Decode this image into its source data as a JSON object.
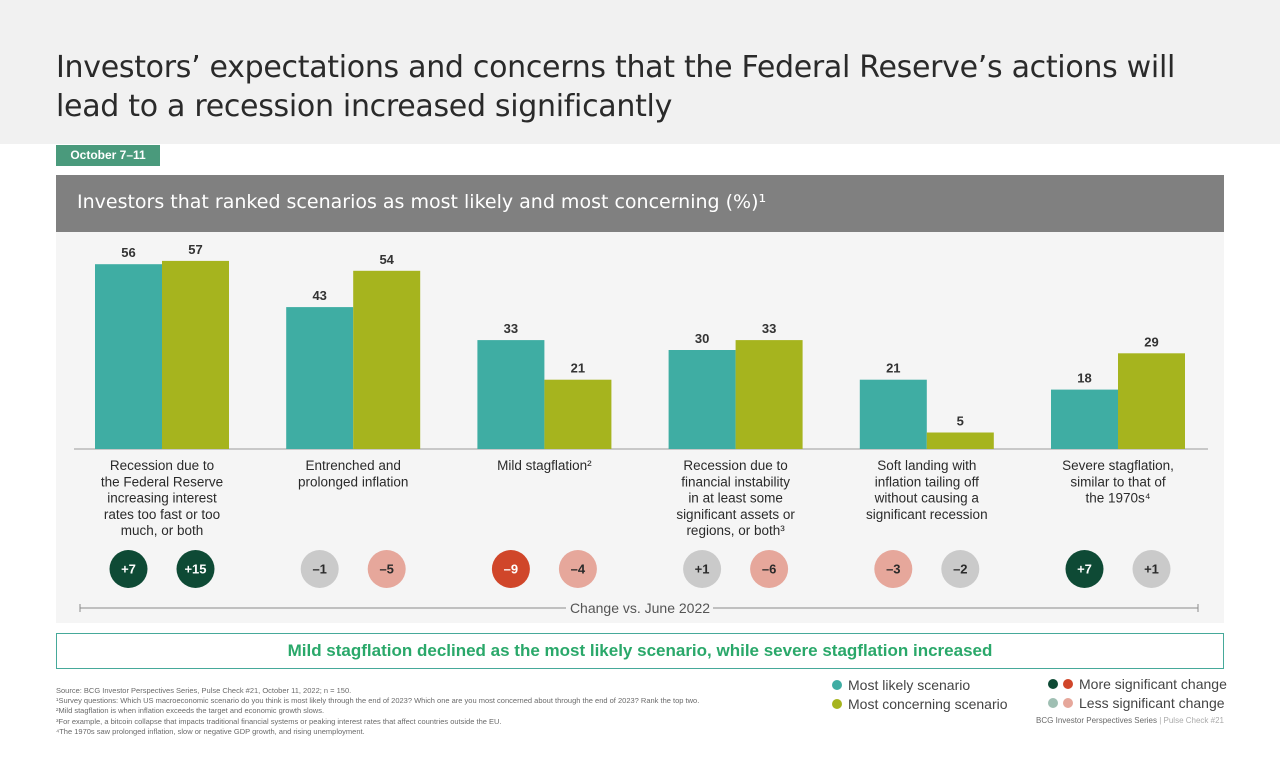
{
  "header": {
    "title": "Investors’ expectations and concerns that the Federal Reserve’s actions will lead to a recession increased significantly",
    "date_tag": "October 7–11"
  },
  "panel": {
    "title": "Investors that ranked scenarios as most likely and most concerning (%)¹"
  },
  "chart_data": {
    "type": "bar",
    "title": "Investors that ranked scenarios as most likely and most concerning (%)¹",
    "categories": [
      [
        "Recession due to",
        "the Federal Reserve",
        "increasing interest",
        "rates too fast or too",
        "much, or both"
      ],
      [
        "Entrenched and",
        "prolonged inflation"
      ],
      [
        "Mild stagflation²"
      ],
      [
        "Recession due to",
        "financial instability",
        "in at least some",
        "significant assets or",
        "regions, or both³"
      ],
      [
        "Soft landing with",
        "inflation tailing off",
        "without causing a",
        "significant recession"
      ],
      [
        "Severe stagflation,",
        "similar to that of",
        "the 1970s⁴"
      ]
    ],
    "series": [
      {
        "name": "Most likely scenario",
        "color": "#3fada3",
        "values": [
          56,
          43,
          33,
          30,
          21,
          18
        ],
        "change": [
          "+7",
          "–1",
          "–9",
          "+1",
          "–3",
          "+7"
        ],
        "change_level": [
          "more-positive",
          "neutral",
          "more-negative",
          "neutral",
          "less-negative",
          "more-positive"
        ]
      },
      {
        "name": "Most concerning scenario",
        "color": "#a6b41e",
        "values": [
          57,
          54,
          21,
          33,
          5,
          29
        ],
        "change": [
          "+15",
          "–5",
          "–4",
          "–6",
          "–2",
          "+1"
        ],
        "change_level": [
          "more-positive",
          "less-negative",
          "less-negative",
          "less-negative",
          "neutral",
          "neutral"
        ]
      }
    ],
    "ylim": [
      0,
      60
    ],
    "change_axis_label": "Change vs. June 2022",
    "grid": false,
    "legend_position": "bottom-right"
  },
  "change_colors": {
    "more-positive": {
      "fill": "#0e4a35",
      "text": "#ffffff"
    },
    "more-negative": {
      "fill": "#d0462a",
      "text": "#ffffff"
    },
    "less-negative": {
      "fill": "#e6a79b",
      "text": "#2a2a2a"
    },
    "neutral": {
      "fill": "#cacaca",
      "text": "#2a2a2a"
    }
  },
  "callout": "Mild stagflation declined as the most likely scenario, while severe stagflation increased",
  "footnotes": [
    "Source: BCG Investor Perspectives Series, Pulse Check #21, October 11, 2022; n = 150.",
    "¹Survey questions: Which US macroeconomic scenario do you think is most likely through the end of 2023? Which one are you most concerned about through the end of 2023? Rank the top two.",
    "²Mild stagflation is when inflation exceeds the target and economic growth slows.",
    "³For example, a bitcoin collapse that impacts traditional financial systems or peaking interest rates that affect countries outside the EU.",
    "⁴The 1970s saw prolonged inflation, slow or negative GDP growth, and rising unemployment."
  ],
  "legend": {
    "series": [
      {
        "label": "Most likely scenario",
        "color": "#3fada3"
      },
      {
        "label": "Most concerning scenario",
        "color": "#a6b41e"
      }
    ],
    "significance": [
      {
        "label": "More significant change",
        "colors": [
          "#0e4a35",
          "#d0462a"
        ]
      },
      {
        "label": "Less significant change",
        "colors": [
          "#9fbfb3",
          "#e6a79b"
        ]
      }
    ]
  },
  "brand": {
    "series": "BCG Investor Perspectives Series",
    "separator": "|",
    "issue": "Pulse Check #21"
  }
}
